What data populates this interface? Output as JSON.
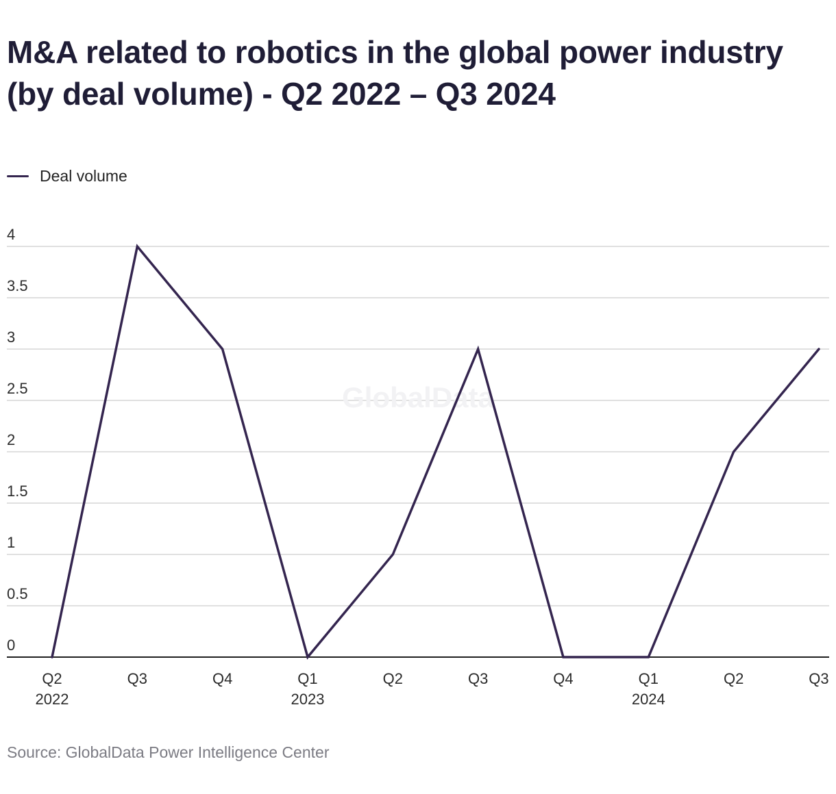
{
  "title": "M&A related to robotics in the global power industry (by deal volume) - Q2 2022 – Q3 2024",
  "legend": {
    "label": "Deal volume"
  },
  "watermark": "GlobalData",
  "source": "Source: GlobalData Power Intelligence Center",
  "colors": {
    "line": "#34254f",
    "grid": "#d6d6d6",
    "axis": "#1f1f1f",
    "watermark": "#f2f2f4"
  },
  "chart_data": {
    "type": "line",
    "title": "M&A related to robotics in the global power industry (by deal volume) - Q2 2022 – Q3 2024",
    "xlabel": "",
    "ylabel": "",
    "categories": [
      [
        "Q2",
        "2022"
      ],
      [
        "Q3"
      ],
      [
        "Q4"
      ],
      [
        "Q1",
        "2023"
      ],
      [
        "Q2"
      ],
      [
        "Q3"
      ],
      [
        "Q4"
      ],
      [
        "Q1",
        "2024"
      ],
      [
        "Q2"
      ],
      [
        "Q3"
      ]
    ],
    "series": [
      {
        "name": "Deal volume",
        "values": [
          0,
          4,
          3,
          0,
          1,
          3,
          0,
          0,
          2,
          3
        ]
      }
    ],
    "ylim": [
      0,
      4
    ],
    "yticks": [
      0,
      0.5,
      1,
      1.5,
      2,
      2.5,
      3,
      3.5,
      4
    ],
    "grid": true,
    "legend_position": "top-left"
  }
}
